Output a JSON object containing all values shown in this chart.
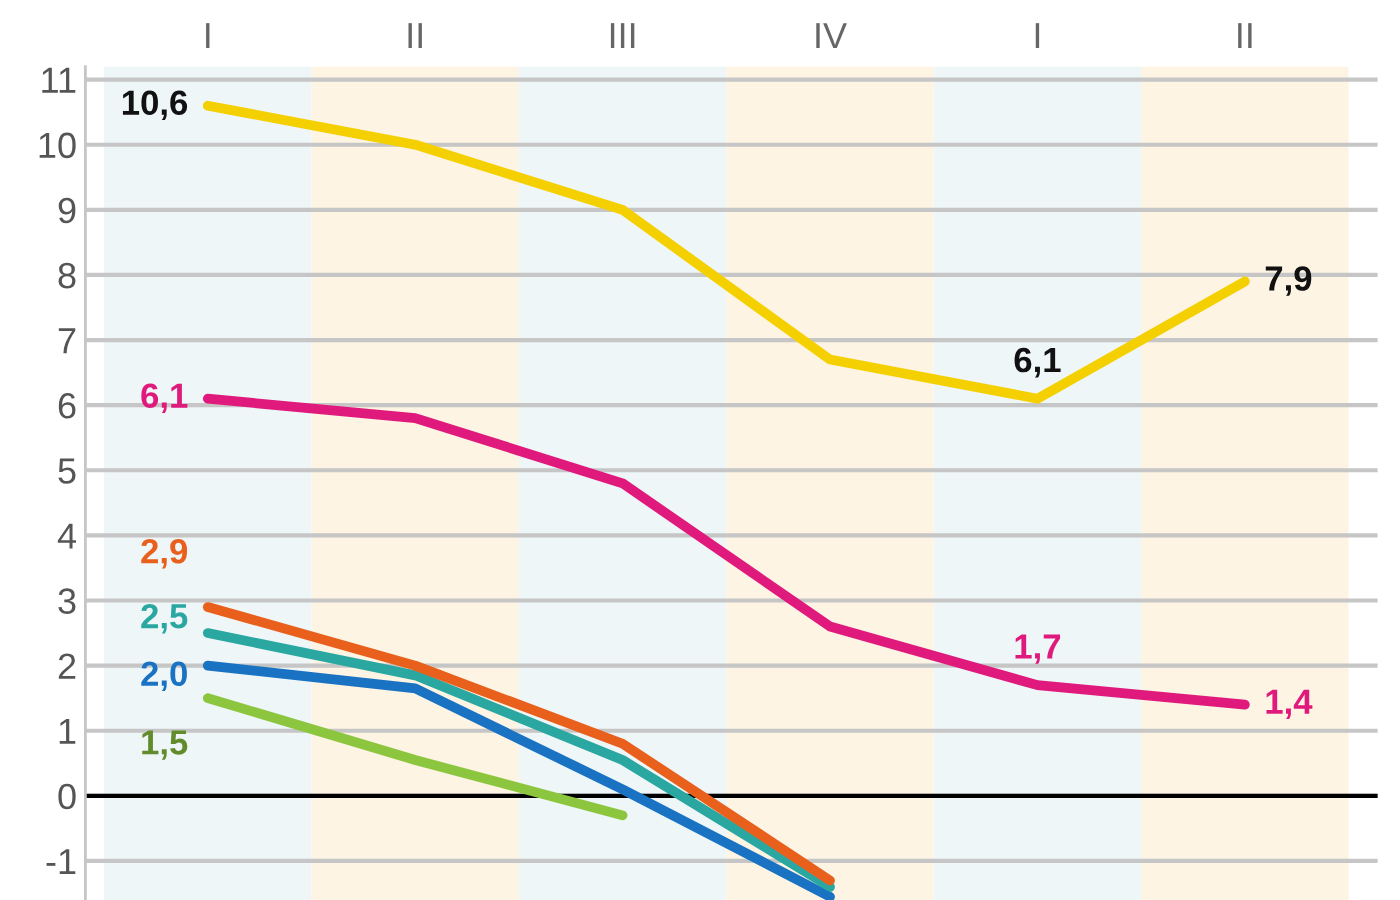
{
  "chart_data": {
    "type": "line",
    "categories": [
      "I",
      "II",
      "III",
      "IV",
      "I",
      "II"
    ],
    "ylim": [
      -1.6,
      11.2
    ],
    "yticks": [
      -1,
      0,
      1,
      2,
      3,
      4,
      5,
      6,
      7,
      8,
      9,
      10,
      11
    ],
    "grid": "y",
    "marker": "none",
    "line_style": "solid",
    "ref_lines": [
      {
        "axis": "y",
        "value": 0,
        "color": "#000000"
      }
    ],
    "series": [
      {
        "color": "#f5d000",
        "values": [
          10.6,
          10.0,
          9.0,
          6.7,
          6.1,
          7.9
        ],
        "value_labels": [
          "10,6",
          null,
          null,
          null,
          "6,1",
          "7,9"
        ]
      },
      {
        "color": "#e0197d",
        "values": [
          6.1,
          5.8,
          4.8,
          2.6,
          1.7,
          1.4
        ],
        "value_labels": [
          "6,1",
          null,
          null,
          null,
          "1,7",
          "1,4"
        ]
      },
      {
        "color": "#e8601c",
        "values": [
          2.9,
          2.0,
          0.8,
          -1.3,
          null,
          null
        ],
        "value_labels": [
          "2,9",
          null,
          null,
          null,
          null,
          null
        ]
      },
      {
        "color": "#2aa7a0",
        "values": [
          2.5,
          1.85,
          0.55,
          -1.4,
          null,
          null
        ],
        "value_labels": [
          "2,5",
          null,
          null,
          null,
          null,
          null
        ]
      },
      {
        "color": "#1a73c2",
        "values": [
          2.0,
          1.65,
          0.1,
          -1.55,
          null,
          null
        ],
        "value_labels": [
          "2,0",
          null,
          null,
          null,
          null,
          null
        ]
      },
      {
        "color": "#8cc63e",
        "values": [
          1.5,
          0.55,
          -0.3,
          null,
          null,
          null
        ],
        "value_labels": [
          "1,5",
          null,
          null,
          null,
          null,
          null
        ]
      }
    ]
  }
}
